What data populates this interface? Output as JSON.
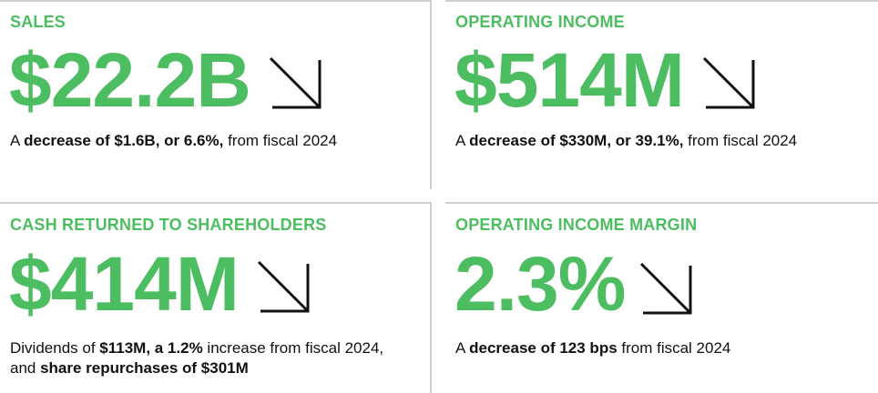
{
  "accent_color": "#4dbd61",
  "cards": {
    "sales": {
      "label": "SALES",
      "value": "$22.2B",
      "trend_icon": "arrow-down-right-icon",
      "desc_lead": "A ",
      "desc_bold": "decrease of $1.6B, or 6.6%,",
      "desc_tail": " from fiscal 2024"
    },
    "operating_income": {
      "label": "OPERATING INCOME",
      "value": "$514M",
      "trend_icon": "arrow-down-right-icon",
      "desc_lead": "A ",
      "desc_bold": "decrease of $330M, or 39.1%,",
      "desc_tail": " from fiscal 2024"
    },
    "cash_returned": {
      "label": "CASH RETURNED TO SHAREHOLDERS",
      "value": "$414M",
      "trend_icon": "arrow-down-right-icon",
      "desc_lead": "Dividends of ",
      "desc_bold_1": "$113M, a 1.2%",
      "desc_mid": " increase from fiscal 2024, and ",
      "desc_bold_2": "share repurchases of $301M"
    },
    "operating_income_margin": {
      "label": "OPERATING INCOME MARGIN",
      "value": "2.3%",
      "trend_icon": "arrow-down-right-icon",
      "desc_lead": "A ",
      "desc_bold": "decrease of 123 bps",
      "desc_tail": " from fiscal 2024"
    }
  }
}
